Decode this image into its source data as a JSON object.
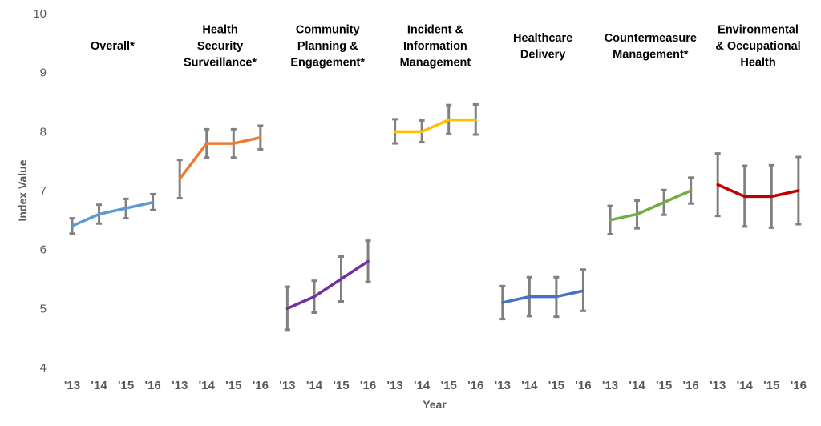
{
  "chart_data": {
    "type": "line",
    "xlabel": "Year",
    "ylabel": "Index Value",
    "ylim": [
      4,
      10
    ],
    "yticks": [
      4,
      5,
      6,
      7,
      8,
      9,
      10
    ],
    "grid": false,
    "error_bar_color": "#808080",
    "groups": [
      {
        "title_lines": [
          "Overall*"
        ],
        "color": "#5B9BD5",
        "x": [
          "'13",
          "'14",
          "'15",
          "'16"
        ],
        "values": [
          6.4,
          6.6,
          6.7,
          6.8
        ],
        "err_low": [
          6.27,
          6.44,
          6.53,
          6.67
        ],
        "err_high": [
          6.53,
          6.76,
          6.86,
          6.94
        ]
      },
      {
        "title_lines": [
          "Health",
          "Security",
          "Surveillance*"
        ],
        "color": "#ED7D31",
        "x": [
          "'13",
          "'14",
          "'15",
          "'16"
        ],
        "values": [
          7.2,
          7.8,
          7.8,
          7.9
        ],
        "err_low": [
          6.87,
          7.56,
          7.56,
          7.7
        ],
        "err_high": [
          7.52,
          8.04,
          8.04,
          8.1
        ]
      },
      {
        "title_lines": [
          "Community",
          "Planning &",
          "Engagement*"
        ],
        "color": "#7030A0",
        "x": [
          "'13",
          "'14",
          "'15",
          "'16"
        ],
        "values": [
          5.0,
          5.2,
          5.5,
          5.8
        ],
        "err_low": [
          4.64,
          4.93,
          5.12,
          5.45
        ],
        "err_high": [
          5.37,
          5.47,
          5.88,
          6.15
        ]
      },
      {
        "title_lines": [
          "Incident &",
          "Information",
          "Management"
        ],
        "color": "#FFC000",
        "x": [
          "'13",
          "'14",
          "'15",
          "'16"
        ],
        "values": [
          8.0,
          8.0,
          8.2,
          8.2
        ],
        "err_low": [
          7.8,
          7.82,
          7.96,
          7.95
        ],
        "err_high": [
          8.21,
          8.19,
          8.45,
          8.46
        ]
      },
      {
        "title_lines": [
          "Healthcare",
          "Delivery"
        ],
        "color": "#4472C4",
        "x": [
          "'13",
          "'14",
          "'15",
          "'16"
        ],
        "values": [
          5.1,
          5.2,
          5.2,
          5.3
        ],
        "err_low": [
          4.82,
          4.87,
          4.86,
          4.96
        ],
        "err_high": [
          5.38,
          5.53,
          5.53,
          5.66
        ]
      },
      {
        "title_lines": [
          "Countermeasure",
          "Management*"
        ],
        "color": "#70AD47",
        "x": [
          "'13",
          "'14",
          "'15",
          "'16"
        ],
        "values": [
          6.5,
          6.6,
          6.8,
          7.0
        ],
        "err_low": [
          6.26,
          6.36,
          6.59,
          6.78
        ],
        "err_high": [
          6.74,
          6.83,
          7.01,
          7.22
        ]
      },
      {
        "title_lines": [
          "Environmental",
          "& Occupational",
          "Health"
        ],
        "color": "#C00000",
        "x": [
          "'13",
          "'14",
          "'15",
          "'16"
        ],
        "values": [
          7.1,
          6.9,
          6.9,
          7.0
        ],
        "err_low": [
          6.57,
          6.39,
          6.37,
          6.43
        ],
        "err_high": [
          7.63,
          7.42,
          7.43,
          7.57
        ]
      }
    ]
  }
}
